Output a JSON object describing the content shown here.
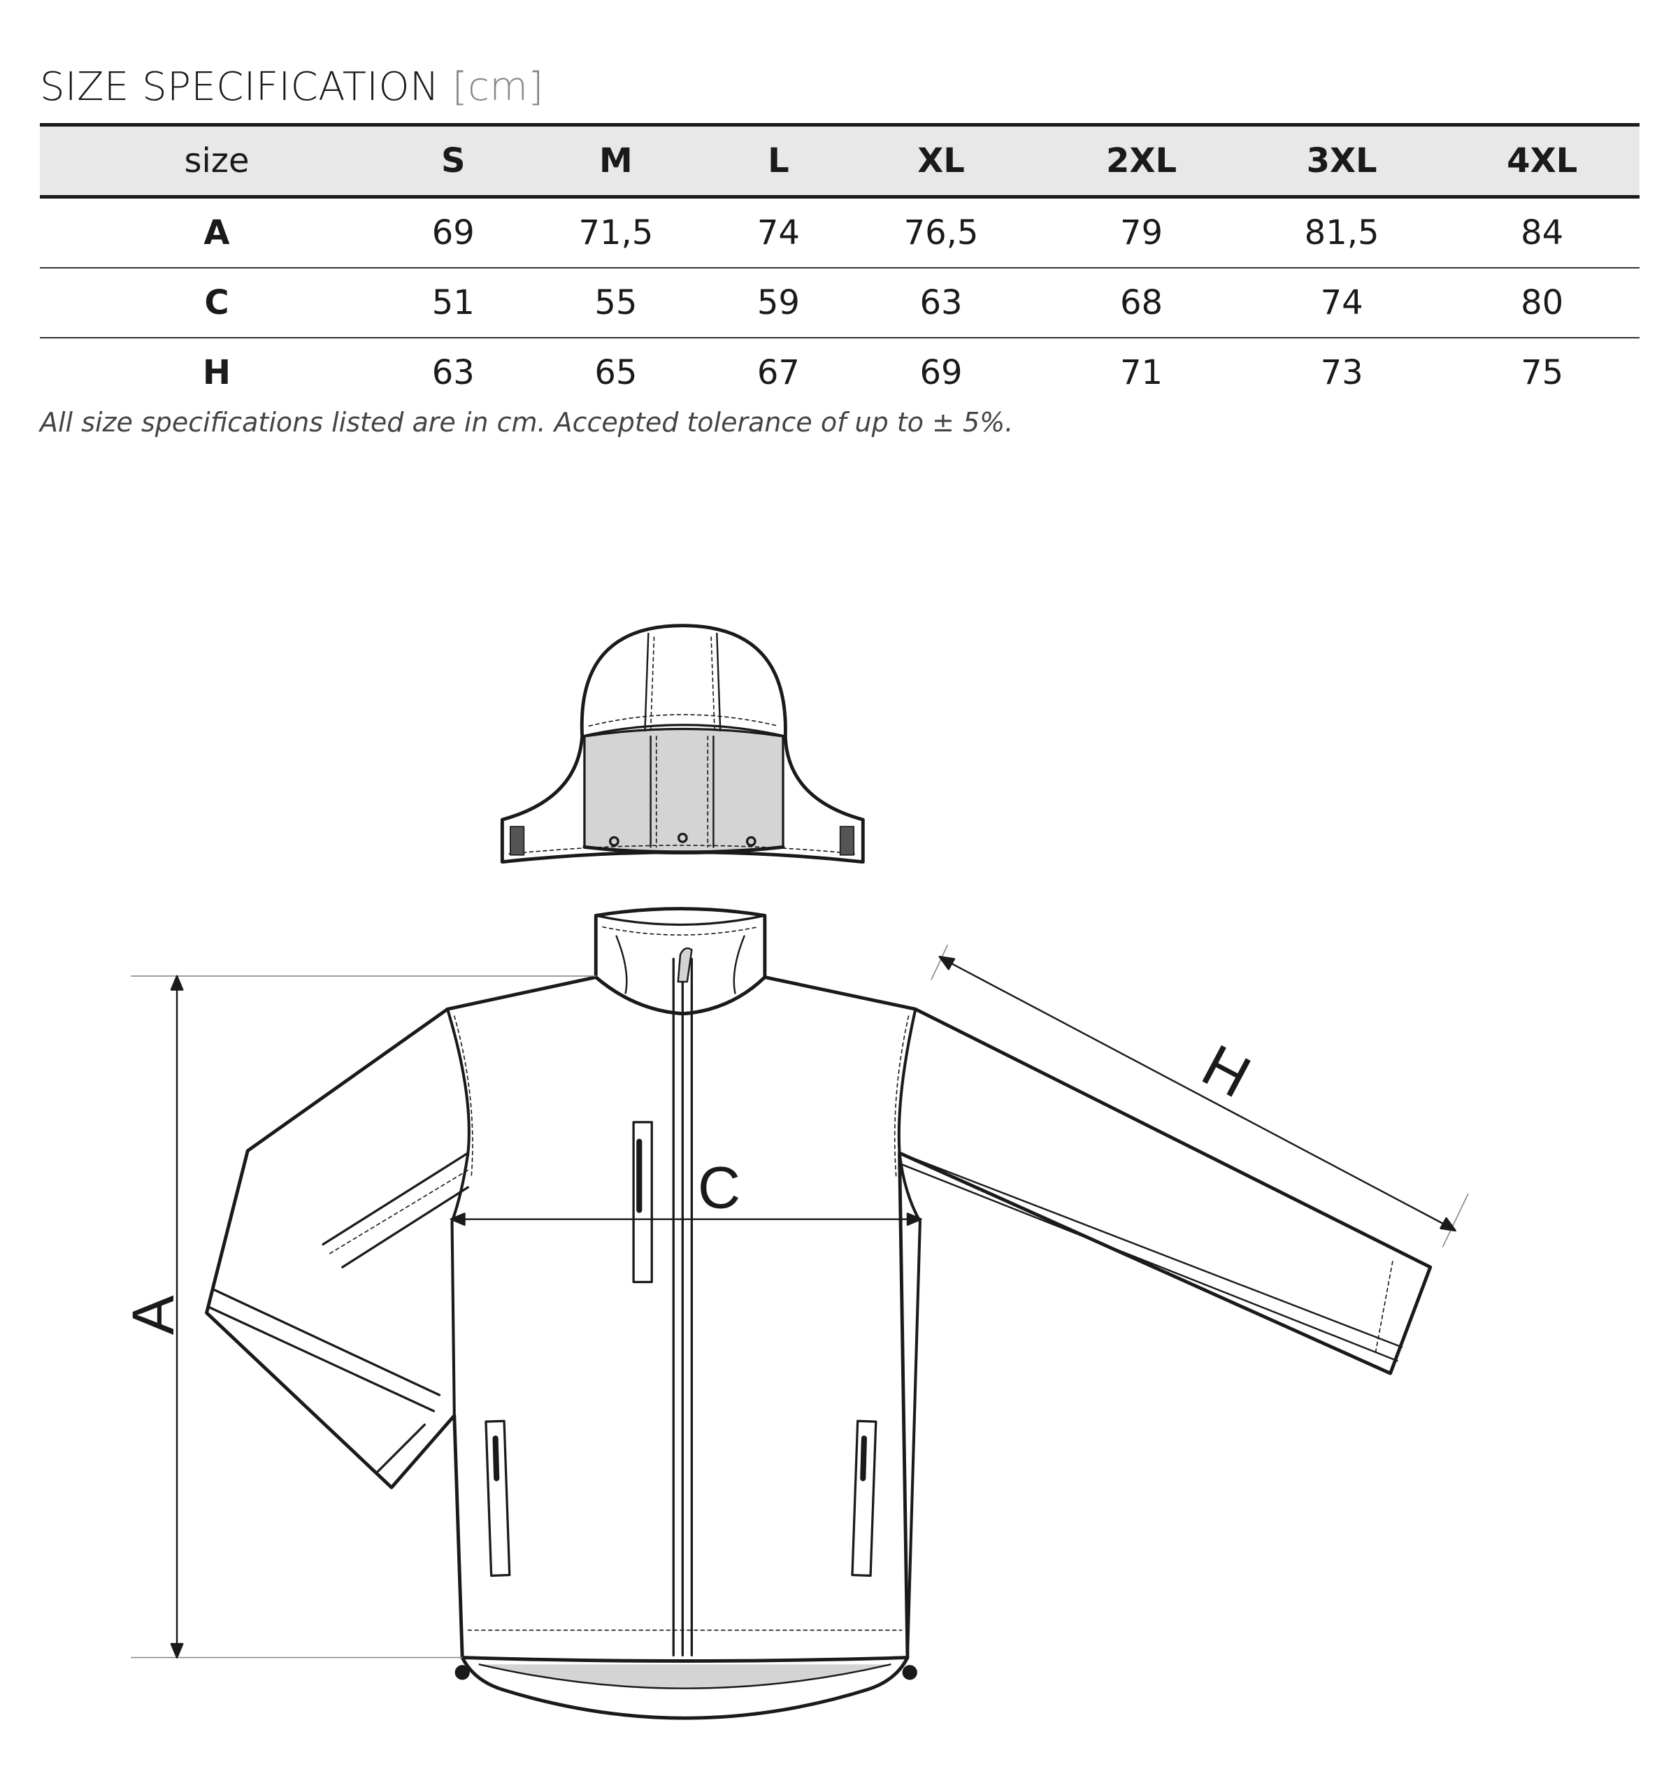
{
  "title": {
    "main": "SIZE SPECIFICATION",
    "unit": "[cm]"
  },
  "table": {
    "header": [
      "size",
      "S",
      "M",
      "L",
      "XL",
      "2XL",
      "3XL",
      "4XL"
    ],
    "rows": [
      {
        "label": "A",
        "values": [
          "69",
          "71,5",
          "74",
          "76,5",
          "79",
          "81,5",
          "84"
        ]
      },
      {
        "label": "C",
        "values": [
          "51",
          "55",
          "59",
          "63",
          "68",
          "74",
          "80"
        ]
      },
      {
        "label": "H",
        "values": [
          "63",
          "65",
          "67",
          "69",
          "71",
          "73",
          "75"
        ]
      }
    ]
  },
  "note": "All size specifications listed are in cm. Accepted tolerance of up to ± 5%.",
  "diagram": {
    "labels": {
      "A": "A",
      "C": "C",
      "H": "H"
    },
    "colors": {
      "line": "#1a1a1a",
      "lining": "#d4d4d4",
      "tab": "#555555"
    }
  }
}
